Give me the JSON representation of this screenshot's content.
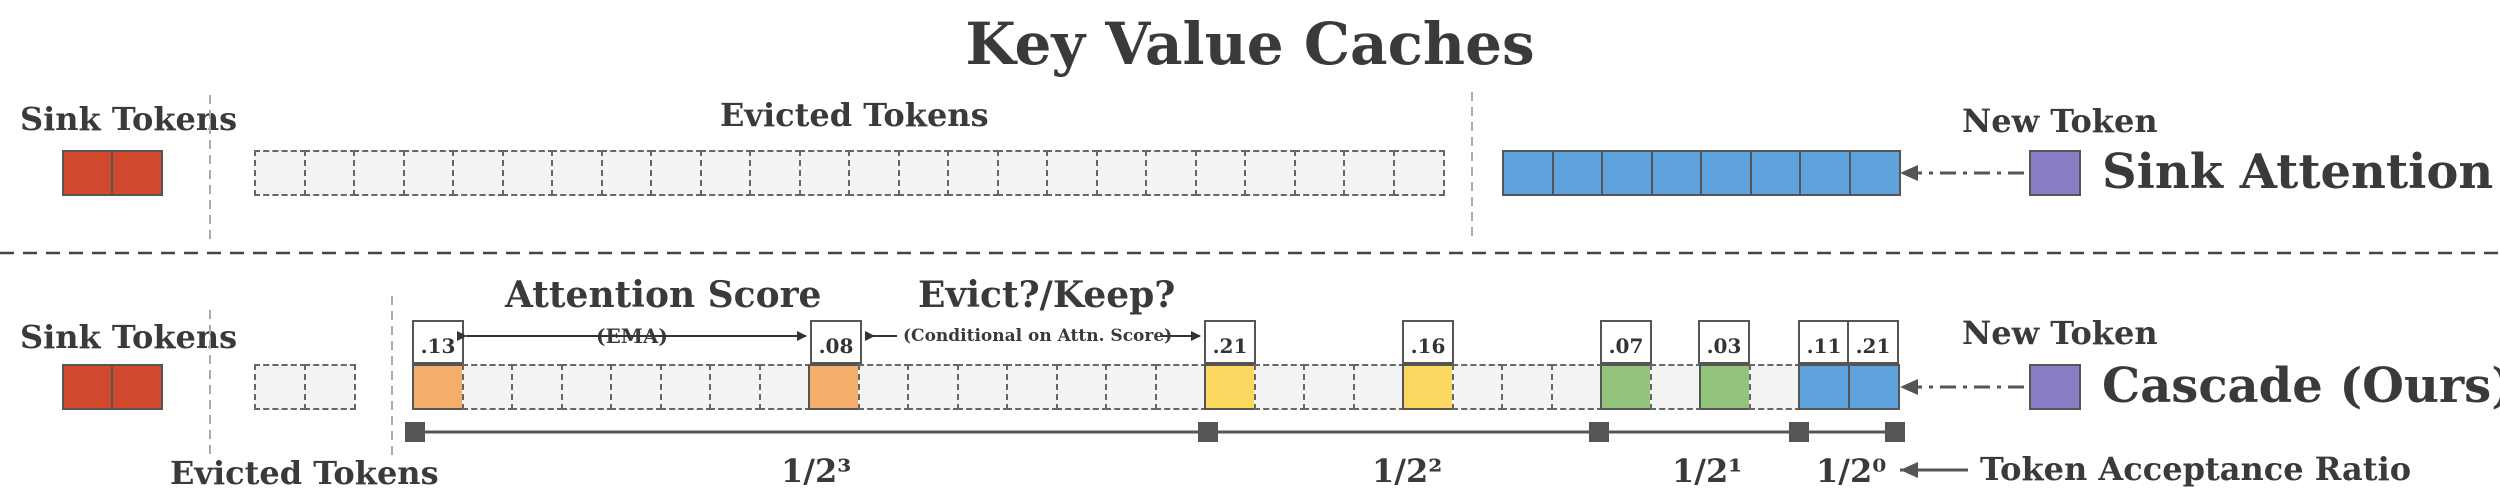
{
  "title": "Key Value Caches",
  "top_row": {
    "sink_label": "Sink Tokens",
    "evicted_label": "Evicted Tokens",
    "new_token_label": "New Token",
    "method_label": "Sink Attention"
  },
  "bottom_row": {
    "sink_label": "Sink Tokens",
    "evicted_label": "Evicted Tokens",
    "new_token_label": "New Token",
    "method_label": "Cascade (Ours)",
    "attention_score_label": "Attention Score",
    "ema_label": "(EMA)",
    "evict_keep_label": "Evict?/Keep?",
    "conditional_label": "(Conditional on Attn. Score)",
    "scores": [
      ".13",
      ".08",
      ".21",
      ".16",
      ".07",
      ".03",
      ".11",
      ".21"
    ],
    "ratios": [
      "1/2³",
      "1/2²",
      "1/2¹",
      "1/2⁰"
    ],
    "acceptance_label": "Token Acceptance Ratio"
  },
  "colors": {
    "sink": "#d24a2e",
    "blue": "#5ea3dc",
    "purple": "#8a7cc4",
    "orange": "#f4ad6a",
    "yellow": "#fbd960",
    "green": "#92c47c",
    "dashed_fill": "#f3f3f3"
  }
}
